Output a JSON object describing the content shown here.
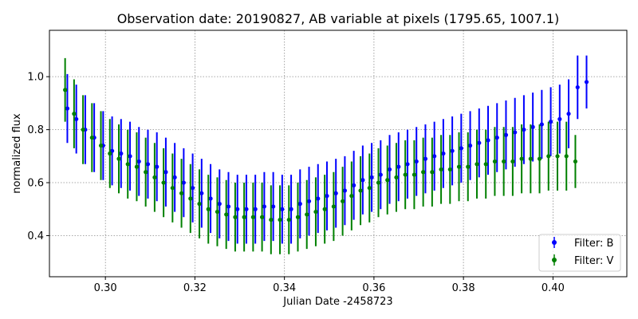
{
  "chart_data": {
    "type": "scatter",
    "title": "Observation date: 20190827, AB variable at pixels (1795.65, 1007.1)",
    "xlabel": "Julian Date -2458723",
    "ylabel": "normalized flux",
    "xlim": [
      0.2875,
      0.4165
    ],
    "ylim": [
      0.245,
      1.175
    ],
    "xticks": [
      0.3,
      0.32,
      0.34,
      0.36,
      0.38,
      0.4
    ],
    "xtick_labels": [
      "0.30",
      "0.32",
      "0.34",
      "0.36",
      "0.38",
      "0.40"
    ],
    "yticks": [
      0.4,
      0.6,
      0.8,
      1.0
    ],
    "ytick_labels": [
      "0.4",
      "0.6",
      "0.8",
      "1.0"
    ],
    "grid": true,
    "legend_position": "bottom-right",
    "error_bars": true,
    "series": [
      {
        "name": "Filter: B",
        "color": "#0000ff",
        "x": [
          0.2915,
          0.2935,
          0.2955,
          0.2975,
          0.2995,
          0.3015,
          0.3035,
          0.3055,
          0.3075,
          0.3095,
          0.3115,
          0.3135,
          0.3155,
          0.3175,
          0.3195,
          0.3215,
          0.3235,
          0.3255,
          0.3275,
          0.3295,
          0.3315,
          0.3335,
          0.3355,
          0.3375,
          0.3395,
          0.3415,
          0.3435,
          0.3455,
          0.3475,
          0.3495,
          0.3515,
          0.3535,
          0.3555,
          0.3575,
          0.3595,
          0.3615,
          0.3635,
          0.3655,
          0.3675,
          0.3695,
          0.3715,
          0.3735,
          0.3755,
          0.3775,
          0.3795,
          0.3815,
          0.3835,
          0.3855,
          0.3875,
          0.3895,
          0.3915,
          0.3935,
          0.3955,
          0.3975,
          0.3995,
          0.4015,
          0.4035,
          0.4055,
          0.4075
        ],
        "y": [
          0.88,
          0.84,
          0.8,
          0.77,
          0.74,
          0.72,
          0.71,
          0.7,
          0.68,
          0.67,
          0.66,
          0.64,
          0.62,
          0.6,
          0.58,
          0.56,
          0.54,
          0.52,
          0.51,
          0.5,
          0.5,
          0.5,
          0.51,
          0.51,
          0.5,
          0.5,
          0.52,
          0.53,
          0.54,
          0.55,
          0.56,
          0.57,
          0.59,
          0.61,
          0.62,
          0.63,
          0.65,
          0.66,
          0.67,
          0.68,
          0.69,
          0.7,
          0.71,
          0.72,
          0.73,
          0.74,
          0.75,
          0.76,
          0.77,
          0.78,
          0.79,
          0.8,
          0.81,
          0.82,
          0.83,
          0.84,
          0.86,
          0.96,
          0.98
        ],
        "yerr": [
          0.13,
          0.13,
          0.13,
          0.13,
          0.13,
          0.13,
          0.13,
          0.13,
          0.13,
          0.13,
          0.13,
          0.13,
          0.13,
          0.13,
          0.13,
          0.13,
          0.13,
          0.13,
          0.13,
          0.13,
          0.13,
          0.13,
          0.13,
          0.13,
          0.13,
          0.13,
          0.13,
          0.13,
          0.13,
          0.13,
          0.13,
          0.13,
          0.13,
          0.13,
          0.13,
          0.13,
          0.13,
          0.13,
          0.13,
          0.13,
          0.13,
          0.13,
          0.13,
          0.13,
          0.13,
          0.13,
          0.13,
          0.13,
          0.13,
          0.13,
          0.13,
          0.13,
          0.13,
          0.13,
          0.13,
          0.13,
          0.13,
          0.12,
          0.1
        ]
      },
      {
        "name": "Filter: V",
        "color": "#008000",
        "x": [
          0.291,
          0.293,
          0.295,
          0.297,
          0.299,
          0.301,
          0.303,
          0.305,
          0.307,
          0.309,
          0.311,
          0.313,
          0.315,
          0.317,
          0.319,
          0.321,
          0.323,
          0.325,
          0.327,
          0.329,
          0.331,
          0.333,
          0.335,
          0.337,
          0.339,
          0.341,
          0.343,
          0.345,
          0.347,
          0.349,
          0.351,
          0.353,
          0.355,
          0.357,
          0.359,
          0.361,
          0.363,
          0.365,
          0.367,
          0.369,
          0.371,
          0.373,
          0.375,
          0.377,
          0.379,
          0.381,
          0.383,
          0.385,
          0.387,
          0.389,
          0.391,
          0.393,
          0.395,
          0.397,
          0.399,
          0.401,
          0.403,
          0.405
        ],
        "y": [
          0.95,
          0.86,
          0.8,
          0.77,
          0.74,
          0.71,
          0.69,
          0.67,
          0.66,
          0.64,
          0.62,
          0.6,
          0.58,
          0.56,
          0.54,
          0.52,
          0.5,
          0.49,
          0.48,
          0.47,
          0.47,
          0.47,
          0.47,
          0.46,
          0.46,
          0.46,
          0.47,
          0.48,
          0.49,
          0.5,
          0.51,
          0.53,
          0.55,
          0.57,
          0.58,
          0.6,
          0.61,
          0.62,
          0.63,
          0.63,
          0.64,
          0.64,
          0.65,
          0.65,
          0.66,
          0.66,
          0.67,
          0.67,
          0.68,
          0.68,
          0.68,
          0.69,
          0.69,
          0.69,
          0.7,
          0.7,
          0.7,
          0.68
        ],
        "yerr": [
          0.12,
          0.13,
          0.13,
          0.13,
          0.13,
          0.13,
          0.13,
          0.13,
          0.13,
          0.13,
          0.13,
          0.13,
          0.13,
          0.13,
          0.13,
          0.13,
          0.13,
          0.13,
          0.13,
          0.13,
          0.13,
          0.13,
          0.13,
          0.13,
          0.13,
          0.13,
          0.13,
          0.13,
          0.13,
          0.13,
          0.13,
          0.13,
          0.13,
          0.13,
          0.13,
          0.13,
          0.13,
          0.13,
          0.13,
          0.13,
          0.13,
          0.13,
          0.13,
          0.13,
          0.13,
          0.13,
          0.13,
          0.13,
          0.13,
          0.13,
          0.13,
          0.13,
          0.13,
          0.13,
          0.13,
          0.13,
          0.13,
          0.1
        ]
      }
    ]
  }
}
